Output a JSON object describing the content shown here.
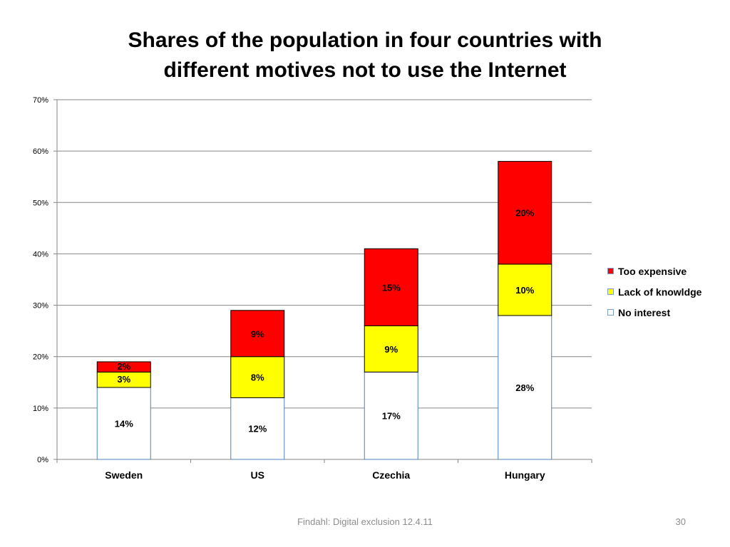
{
  "slide": {
    "title_line1": "Shares of the population in four countries with",
    "title_line2": "different motives not to use the Internet",
    "footer": "Findahl: Digital exclusion 12.4.11",
    "page_number": "30"
  },
  "chart_data": {
    "type": "bar",
    "stacked": true,
    "categories": [
      "Sweden",
      "US",
      "Czechia",
      "Hungary"
    ],
    "series": [
      {
        "name": "No interest",
        "values": [
          14,
          12,
          17,
          28
        ],
        "color": "#ffffff",
        "labels": [
          "14%",
          "12%",
          "17%",
          "28%"
        ]
      },
      {
        "name": "Lack of knowldge",
        "values": [
          3,
          8,
          9,
          10
        ],
        "color": "#ffff00",
        "labels": [
          "3%",
          "8%",
          "9%",
          "10%"
        ]
      },
      {
        "name": "Too expensive",
        "values": [
          2,
          9,
          15,
          20
        ],
        "color": "#ff0000",
        "labels": [
          "2%",
          "9%",
          "15%",
          "20%"
        ]
      }
    ],
    "ylim": [
      0,
      70
    ],
    "yticks": [
      0,
      10,
      20,
      30,
      40,
      50,
      60,
      70
    ],
    "ytick_labels": [
      "0%",
      "10%",
      "20%",
      "30%",
      "40%",
      "50%",
      "60%",
      "70%"
    ],
    "legend_position": "right",
    "grid": true
  }
}
